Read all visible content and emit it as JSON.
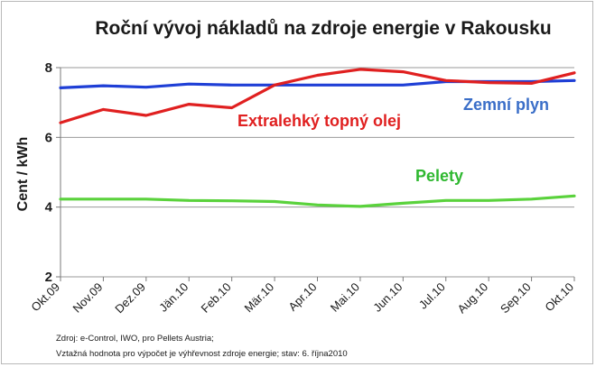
{
  "chart_data": {
    "type": "line",
    "title": "Roční vývoj nákladů na zdroje energie v Rakousku",
    "ylabel": "Cent / kWh",
    "xlabel": "",
    "ylim": [
      2,
      8
    ],
    "yticks": [
      2,
      4,
      6,
      8
    ],
    "grid": true,
    "categories": [
      "Okt.09",
      "Nov.09",
      "Dez.09",
      "Jän.10",
      "Feb.10",
      "Mär.10",
      "Apr.10",
      "Mai.10",
      "Jun.10",
      "Jul.10",
      "Aug.10",
      "Sep.10",
      "Okt.10"
    ],
    "series": [
      {
        "name": "Zemní plyn",
        "color": "#1f3fd6",
        "label_color": "#3a6ec8",
        "values": [
          7.42,
          7.48,
          7.44,
          7.53,
          7.5,
          7.5,
          7.5,
          7.5,
          7.5,
          7.6,
          7.6,
          7.6,
          7.63
        ]
      },
      {
        "name": "Extralehký topný olej",
        "color": "#e02020",
        "label_color": "#e02020",
        "values": [
          6.42,
          6.8,
          6.63,
          6.95,
          6.85,
          7.5,
          7.78,
          7.95,
          7.88,
          7.63,
          7.57,
          7.55,
          7.85
        ]
      },
      {
        "name": "Pelety",
        "color": "#5ad23c",
        "label_color": "#2fb830",
        "values": [
          4.23,
          4.23,
          4.23,
          4.19,
          4.18,
          4.16,
          4.06,
          4.02,
          4.11,
          4.19,
          4.19,
          4.23,
          4.32
        ]
      }
    ],
    "source_lines": [
      "Zdroj: e-Control,  IWO, pro Pellets Austria;",
      "Vztažná hodnota  pro výpočet je výhřevnost zdroje energie; stav: 6. října2010"
    ]
  }
}
